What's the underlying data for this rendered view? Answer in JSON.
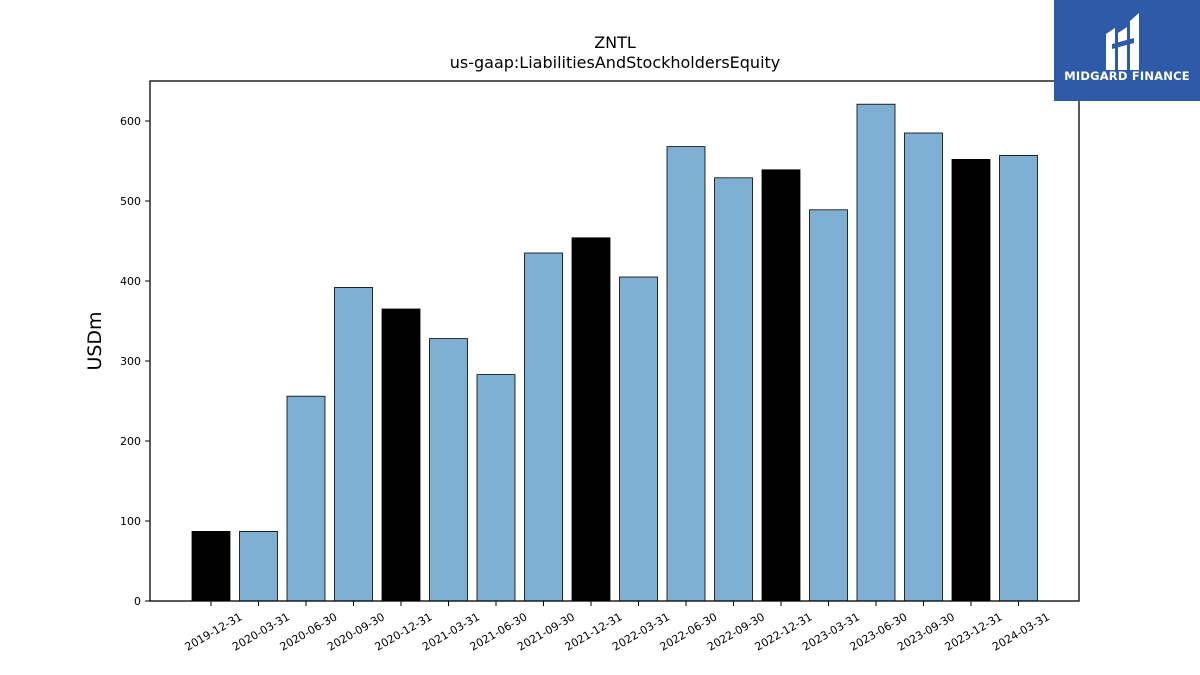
{
  "chart_data": {
    "type": "bar",
    "title": "ZNTL",
    "subtitle": "us-gaap:LiabilitiesAndStockholdersEquity",
    "ylabel": "USDm",
    "xlabel": "",
    "ylim": [
      0,
      650
    ],
    "yticks": [
      0,
      100,
      200,
      300,
      400,
      500,
      600
    ],
    "grid": false,
    "legend": "none",
    "categories": [
      "2019-12-31",
      "2020-03-31",
      "2020-06-30",
      "2020-09-30",
      "2020-12-31",
      "2021-03-31",
      "2021-06-30",
      "2021-09-30",
      "2021-12-31",
      "2022-03-31",
      "2022-06-30",
      "2022-09-30",
      "2022-12-31",
      "2023-03-31",
      "2023-06-30",
      "2023-09-30",
      "2023-12-31",
      "2024-03-31"
    ],
    "values": [
      87,
      87,
      256,
      392,
      365,
      328,
      283,
      435,
      454,
      405,
      568,
      529,
      539,
      489,
      621,
      585,
      552,
      557
    ],
    "is_fiscal_year_end": [
      true,
      false,
      false,
      false,
      true,
      false,
      false,
      false,
      true,
      false,
      false,
      false,
      true,
      false,
      false,
      false,
      true,
      false
    ],
    "colors": {
      "fiscal_year_end": "#000000",
      "quarter": "#7fafd3",
      "edge": "#000000"
    }
  },
  "logo": {
    "text": "MIDGARD FINANCE",
    "background": "#2e5aa8"
  }
}
